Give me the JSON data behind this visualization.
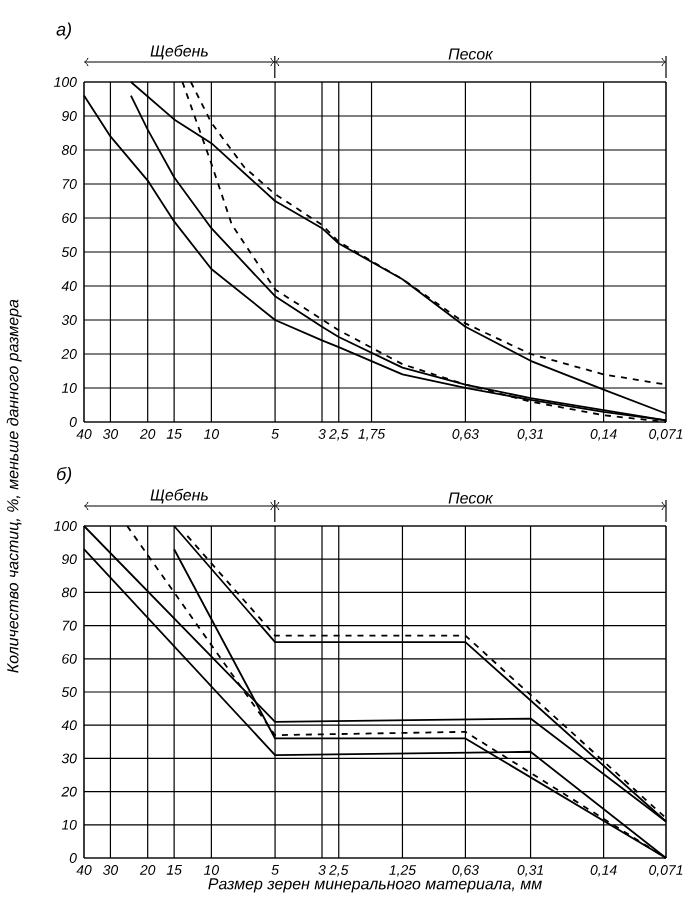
{
  "chart_data": [
    {
      "type": "line",
      "title": "а)",
      "log": "x",
      "grid": true,
      "xlim": [
        40,
        0.071
      ],
      "ylim": [
        0,
        100
      ],
      "xticks": [
        40,
        30,
        20,
        15,
        10,
        5,
        3,
        {
          "value": 2.5,
          "label": "2,5"
        },
        {
          "value": 1.75,
          "label": "1,75"
        },
        {
          "value": 0.63,
          "label": "0,63"
        },
        {
          "value": 0.31,
          "label": "0,31"
        },
        {
          "value": 0.14,
          "label": "0,14"
        },
        {
          "value": 0.071,
          "label": "0,071"
        }
      ],
      "yticks": [
        0,
        10,
        20,
        30,
        40,
        50,
        60,
        70,
        80,
        90,
        100
      ],
      "annotations": [
        "Щебень",
        "Песок"
      ],
      "series": [
        {
          "color": "#000000",
          "line_style": "solid",
          "x": [
            40,
            30,
            20,
            15,
            10,
            5,
            3,
            2.5,
            1.25,
            0.63,
            0.31,
            0.14,
            0.071
          ],
          "values": [
            96,
            84,
            71,
            59,
            45,
            30,
            24,
            22,
            14,
            10,
            6.5,
            3,
            0.5
          ]
        },
        {
          "color": "#000000",
          "line_style": "solid",
          "x": [
            24,
            20,
            15,
            10,
            5,
            3,
            2.5,
            1.25,
            0.63,
            0.31,
            0.14,
            0.071
          ],
          "values": [
            96,
            86,
            72,
            57,
            37,
            28,
            25,
            16,
            11,
            7,
            3.5,
            0.5
          ]
        },
        {
          "color": "#000000",
          "line_style": "solid",
          "x": [
            24,
            15,
            10,
            5,
            3,
            2.5,
            1.25,
            0.63,
            0.31,
            0.14,
            0.071
          ],
          "values": [
            100,
            89,
            82,
            65,
            57,
            52.5,
            42,
            28,
            18,
            9.5,
            2.5
          ]
        },
        {
          "color": "#000000",
          "line_style": "dashed",
          "x": [
            13.7,
            10,
            8,
            5,
            2.5,
            1.25,
            0.63,
            0.31,
            0.14,
            0.071
          ],
          "values": [
            100,
            76,
            58,
            39,
            27,
            17,
            11,
            6,
            2,
            0
          ]
        },
        {
          "color": "#000000",
          "line_style": "dashed",
          "x": [
            12.5,
            10,
            7,
            5,
            3,
            2.5,
            1.25,
            0.63,
            0.31,
            0.14,
            0.071
          ],
          "values": [
            100,
            88,
            75,
            67,
            58,
            53,
            42,
            29,
            20,
            14,
            11
          ]
        }
      ]
    },
    {
      "type": "line",
      "title": "б)",
      "log": "x",
      "grid": true,
      "xlabel": "Размер зерен минерального материала, мм",
      "ylabel": "Количество частиц, %, меньше данного размера",
      "xlim": [
        40,
        0.071
      ],
      "ylim": [
        0,
        100
      ],
      "xticks": [
        40,
        30,
        20,
        15,
        10,
        5,
        3,
        {
          "value": 2.5,
          "label": "2,5"
        },
        {
          "value": 1.25,
          "label": "1,25"
        },
        {
          "value": 0.63,
          "label": "0,63"
        },
        {
          "value": 0.31,
          "label": "0,31"
        },
        {
          "value": 0.14,
          "label": "0,14"
        },
        {
          "value": 0.071,
          "label": "0,071"
        }
      ],
      "yticks": [
        0,
        10,
        20,
        30,
        40,
        50,
        60,
        70,
        80,
        90,
        100
      ],
      "annotations": [
        "Щебень",
        "Песок"
      ],
      "series": [
        {
          "color": "#000000",
          "line_style": "solid",
          "x": [
            40,
            5,
            0.31,
            0.071
          ],
          "values": [
            100,
            41,
            42,
            11
          ]
        },
        {
          "color": "#000000",
          "line_style": "solid",
          "x": [
            40,
            5,
            0.31,
            0.071
          ],
          "values": [
            93,
            31,
            32,
            0
          ]
        },
        {
          "color": "#000000",
          "line_style": "solid",
          "x": [
            15,
            5,
            0.63,
            0.071
          ],
          "values": [
            93,
            36,
            36,
            0
          ]
        },
        {
          "color": "#000000",
          "line_style": "solid",
          "x": [
            15,
            5,
            0.63,
            0.071
          ],
          "values": [
            100,
            65,
            65,
            11
          ]
        },
        {
          "color": "#000000",
          "line_style": "dashed",
          "x": [
            25,
            5,
            0.63,
            0.071
          ],
          "values": [
            100,
            37,
            38,
            0
          ]
        },
        {
          "color": "#000000",
          "line_style": "dashed",
          "x": [
            13,
            5,
            0.63,
            0.071
          ],
          "values": [
            97,
            67,
            67,
            12
          ]
        }
      ]
    }
  ]
}
